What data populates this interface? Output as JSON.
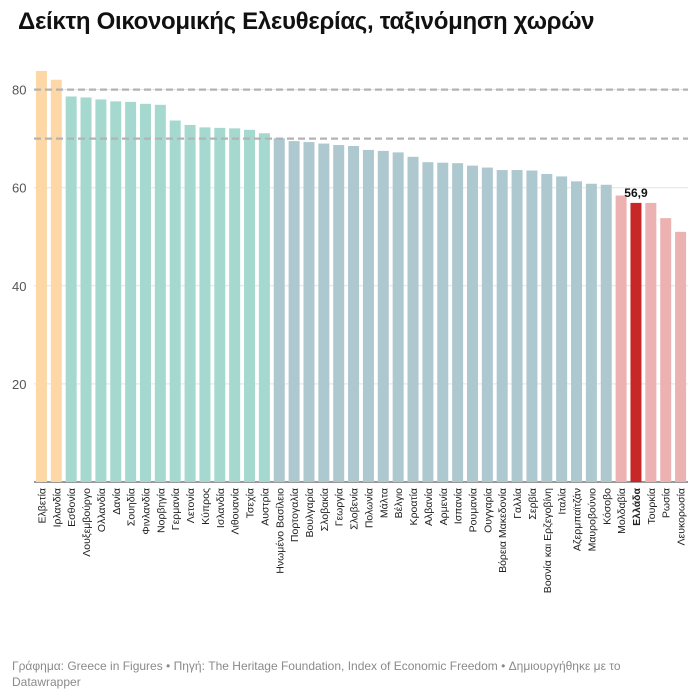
{
  "title": "Δείκτη Οικονομικής Ελευθερίας, ταξινόμηση χωρών",
  "source": "Γράφημα: Greece in Figures • Πηγή: The Heritage Foundation, Index of Economic Freedom • Δημιουργήθηκε με το Datawrapper",
  "colors": {
    "free": "#fdd8a6",
    "mostly_free": "#a5d9d0",
    "moderately_free": "#aec8d0",
    "mostly_unfree": "#ecb2b1",
    "highlight": "#c72727"
  },
  "chart_data": {
    "type": "bar",
    "title": "Δείκτη Οικονομικής Ελευθερίας, ταξινόμηση χωρών",
    "xlabel": "",
    "ylabel": "",
    "ylim": [
      0,
      85
    ],
    "yticks": [
      20,
      40,
      60,
      80
    ],
    "reference_lines": [
      80,
      70
    ],
    "grid": true,
    "highlight_label": "56,9",
    "categories": [
      "Ελβετία",
      "Ιρλανδία",
      "Εσθονία",
      "Λουξεμβούργο",
      "Ολλανδία",
      "Δανία",
      "Σουηδία",
      "Φινλανδία",
      "Νορβηγία",
      "Γερμανία",
      "Λετονία",
      "Κύπρος",
      "Ισλανδία",
      "Λιθουανία",
      "Τσεχία",
      "Αυστρία",
      "Ηνωμένο Βασίλειο",
      "Πορτογαλία",
      "Βουλγαρία",
      "Σλοβακία",
      "Γεωργία",
      "Σλοβενία",
      "Πολωνία",
      "Μάλτα",
      "Βέλγιο",
      "Κροατία",
      "Αλβανία",
      "Αρμενία",
      "Ισπανία",
      "Ρουμανία",
      "Ουγγαρία",
      "Βόρεια Μακεδονία",
      "Γαλλία",
      "Σερβία",
      "Βοσνία και Ερζεγοβίνη",
      "Ιταλία",
      "Αζερμπαϊτζάν",
      "Μαυροβούνιο",
      "Κόσοβο",
      "Μολδαβία",
      "Ελλάδα",
      "Τουρκία",
      "Ρωσία",
      "Λευκορωσία"
    ],
    "values": [
      83.8,
      82.0,
      78.6,
      78.4,
      78.0,
      77.6,
      77.5,
      77.1,
      76.9,
      73.7,
      72.8,
      72.3,
      72.2,
      72.1,
      71.8,
      71.1,
      70.1,
      69.5,
      69.3,
      69.0,
      68.7,
      68.5,
      67.7,
      67.5,
      67.2,
      66.3,
      65.2,
      65.1,
      65.0,
      64.5,
      64.1,
      63.6,
      63.6,
      63.5,
      62.8,
      62.3,
      61.3,
      60.8,
      60.6,
      58.4,
      56.9,
      56.9,
      53.8,
      51.0
    ],
    "groups": [
      "free",
      "free",
      "mostly_free",
      "mostly_free",
      "mostly_free",
      "mostly_free",
      "mostly_free",
      "mostly_free",
      "mostly_free",
      "mostly_free",
      "mostly_free",
      "mostly_free",
      "mostly_free",
      "mostly_free",
      "mostly_free",
      "mostly_free",
      "moderately_free",
      "moderately_free",
      "moderately_free",
      "moderately_free",
      "moderately_free",
      "moderately_free",
      "moderately_free",
      "moderately_free",
      "moderately_free",
      "moderately_free",
      "moderately_free",
      "moderately_free",
      "moderately_free",
      "moderately_free",
      "moderately_free",
      "moderately_free",
      "moderately_free",
      "moderately_free",
      "moderately_free",
      "moderately_free",
      "moderately_free",
      "moderately_free",
      "moderately_free",
      "mostly_unfree",
      "highlight",
      "mostly_unfree",
      "mostly_unfree",
      "mostly_unfree"
    ]
  }
}
